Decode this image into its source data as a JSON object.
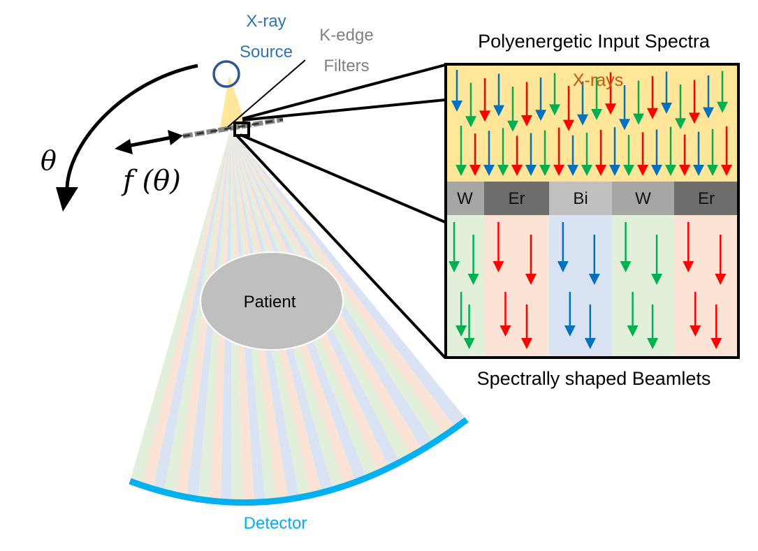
{
  "labels": {
    "source_line1": "X-ray",
    "source_line2": "Source",
    "filters_line1": "K-edge",
    "filters_line2": "Filters",
    "input_spectra": "Polyenergetic Input Spectra",
    "xrays": "X-rays",
    "output_beamlets": "Spectrally shaped Beamlets",
    "patient": "Patient",
    "detector": "Detector",
    "theta": "θ",
    "f_theta": "f (θ)"
  },
  "filters": [
    {
      "name": "W",
      "color": "#a6a6a6",
      "transmits": [
        "green"
      ]
    },
    {
      "name": "Er",
      "color": "#6f6c6c",
      "transmits": [
        "red"
      ]
    },
    {
      "name": "Bi",
      "color": "#c0c0c0",
      "transmits": [
        "blue"
      ]
    },
    {
      "name": "W",
      "color": "#a6a6a6",
      "transmits": [
        "green"
      ]
    },
    {
      "name": "Er",
      "color": "#6f6c6c",
      "transmits": [
        "red"
      ]
    }
  ],
  "colors": {
    "source_text": "#2e74b5",
    "filters_text": "#7f7f7f",
    "xrays_text": "#c55a11",
    "detector": "#00b0f0",
    "input_band": "#ffe699",
    "beam_cone": "#ffe699",
    "patient_fill": "#bfbfbf",
    "arrow_red": "#ff0000",
    "arrow_green": "#00b050",
    "arrow_blue": "#0070c0",
    "beamlet_green": "#e2efda",
    "beamlet_red": "#fbe4d5",
    "beamlet_blue": "#dae3f3"
  }
}
